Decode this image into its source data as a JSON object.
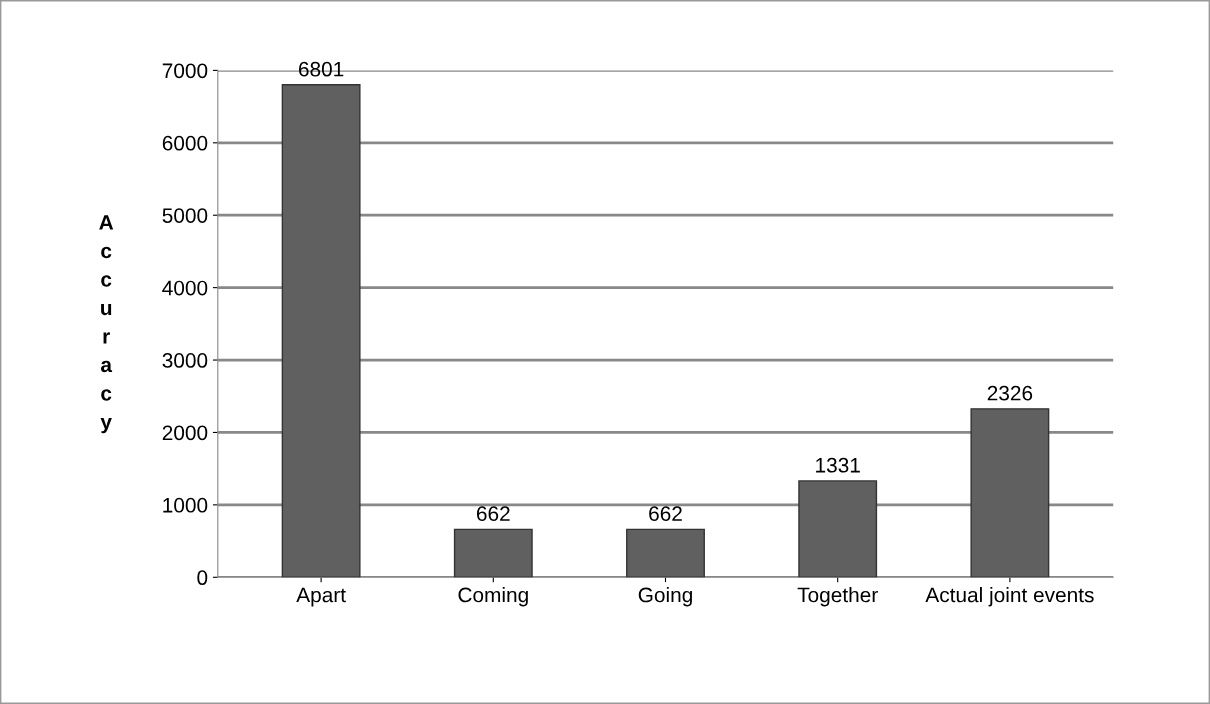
{
  "chart_data": {
    "type": "bar",
    "ylabel": "Accuracy",
    "categories": [
      "Apart",
      "Coming",
      "Going",
      "Together",
      "Actual joint events"
    ],
    "values": [
      6801,
      662,
      662,
      1331,
      2326
    ],
    "color": "#606060",
    "ylim": [
      0,
      7000
    ],
    "yticks": [
      0,
      1000,
      2000,
      3000,
      4000,
      5000,
      6000,
      7000
    ],
    "grid": "y",
    "data_labels": true,
    "legend": false
  }
}
